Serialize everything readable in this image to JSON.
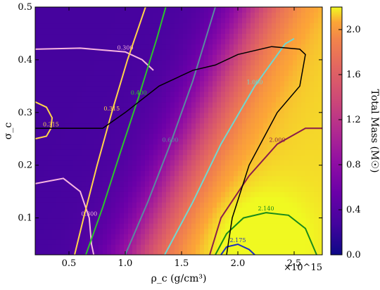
{
  "chart_data": {
    "type": "heatmap",
    "xlabel": "ρ_c (g/cm³)",
    "ylabel": "σ_c",
    "x_multiplier": "×10^15",
    "xlim": [
      0.2,
      2.75
    ],
    "ylim": [
      0.03,
      0.5
    ],
    "x_ticks": [
      "0.5",
      "1.0",
      "1.5",
      "2.0",
      "2.5"
    ],
    "x_tick_values": [
      0.5,
      1.0,
      1.5,
      2.0,
      2.5
    ],
    "y_ticks": [
      "0.1",
      "0.2",
      "0.3",
      "0.4",
      "0.5"
    ],
    "y_tick_values": [
      0.1,
      0.2,
      0.3,
      0.4,
      0.5
    ],
    "colorbar": {
      "label": "Total Mass (M☉)",
      "range": [
        0.0,
        2.2
      ],
      "ticks": [
        "0.0",
        "0.4",
        "0.8",
        "1.2",
        "1.6",
        "2.0"
      ],
      "tick_values": [
        0.0,
        0.4,
        0.8,
        1.2,
        1.6,
        2.0
      ],
      "colormap": "plasma"
    },
    "contours": [
      {
        "label": "0.300",
        "color": "#f7b5e0",
        "points": [
          [
            0.2,
            0.42
          ],
          [
            0.6,
            0.422
          ],
          [
            1.0,
            0.415
          ],
          [
            1.15,
            0.4
          ],
          [
            1.25,
            0.38
          ]
        ]
      },
      {
        "label": "0.300",
        "color": "#f7b5e0",
        "points": [
          [
            0.2,
            0.165
          ],
          [
            0.45,
            0.175
          ],
          [
            0.6,
            0.15
          ],
          [
            0.68,
            0.1
          ],
          [
            0.7,
            0.05
          ],
          [
            0.72,
            0.03
          ]
        ]
      },
      {
        "label": "0.315",
        "color": "#ffd54a",
        "points": [
          [
            0.2,
            0.32
          ],
          [
            0.3,
            0.31
          ],
          [
            0.35,
            0.29
          ],
          [
            0.34,
            0.27
          ],
          [
            0.3,
            0.255
          ],
          [
            0.2,
            0.25
          ]
        ]
      },
      {
        "label": "0.315",
        "color": "#ffd54a",
        "points": [
          [
            0.55,
            0.03
          ],
          [
            0.63,
            0.1
          ],
          [
            0.75,
            0.2
          ],
          [
            0.88,
            0.3
          ],
          [
            1.02,
            0.4
          ],
          [
            1.18,
            0.5
          ]
        ]
      },
      {
        "label": "0.400",
        "color": "#2cc52c",
        "points": [
          [
            0.65,
            0.03
          ],
          [
            0.8,
            0.12
          ],
          [
            0.95,
            0.22
          ],
          [
            1.12,
            0.33
          ],
          [
            1.28,
            0.44
          ],
          [
            1.36,
            0.5
          ]
        ]
      },
      {
        "label": "0.600",
        "color": "#5a8aa0",
        "points": [
          [
            1.0,
            0.03
          ],
          [
            1.2,
            0.13
          ],
          [
            1.4,
            0.24
          ],
          [
            1.6,
            0.36
          ],
          [
            1.8,
            0.5
          ]
        ]
      },
      {
        "label": "1.000",
        "color": "#6fd8d0",
        "points": [
          [
            1.35,
            0.03
          ],
          [
            1.6,
            0.13
          ],
          [
            1.85,
            0.24
          ],
          [
            2.15,
            0.35
          ],
          [
            2.42,
            0.43
          ],
          [
            2.5,
            0.44
          ]
        ]
      },
      {
        "label": "2.000",
        "color": "#8b1d4a",
        "points": [
          [
            1.75,
            0.03
          ],
          [
            1.85,
            0.1
          ],
          [
            2.1,
            0.18
          ],
          [
            2.35,
            0.24
          ],
          [
            2.6,
            0.27
          ],
          [
            2.75,
            0.27
          ]
        ]
      },
      {
        "label": "2.140",
        "color": "#1a8a1a",
        "points": [
          [
            1.8,
            0.03
          ],
          [
            1.9,
            0.07
          ],
          [
            2.05,
            0.1
          ],
          [
            2.25,
            0.11
          ],
          [
            2.45,
            0.105
          ],
          [
            2.6,
            0.08
          ],
          [
            2.7,
            0.03
          ]
        ]
      },
      {
        "label": "2.175",
        "color": "#1e2fbf",
        "points": [
          [
            1.85,
            0.03
          ],
          [
            1.9,
            0.045
          ],
          [
            2.0,
            0.05
          ],
          [
            2.1,
            0.04
          ],
          [
            2.15,
            0.03
          ]
        ]
      },
      {
        "label": "",
        "color": "#000000",
        "points": [
          [
            0.2,
            0.27
          ],
          [
            0.6,
            0.27
          ],
          [
            0.8,
            0.27
          ],
          [
            1.0,
            0.3
          ],
          [
            1.3,
            0.35
          ],
          [
            1.6,
            0.38
          ],
          [
            1.8,
            0.39
          ],
          [
            2.0,
            0.41
          ],
          [
            2.3,
            0.425
          ],
          [
            2.55,
            0.42
          ],
          [
            2.6,
            0.41
          ],
          [
            2.55,
            0.35
          ],
          [
            2.35,
            0.3
          ],
          [
            2.1,
            0.2
          ],
          [
            1.95,
            0.1
          ],
          [
            1.9,
            0.03
          ]
        ]
      }
    ]
  }
}
